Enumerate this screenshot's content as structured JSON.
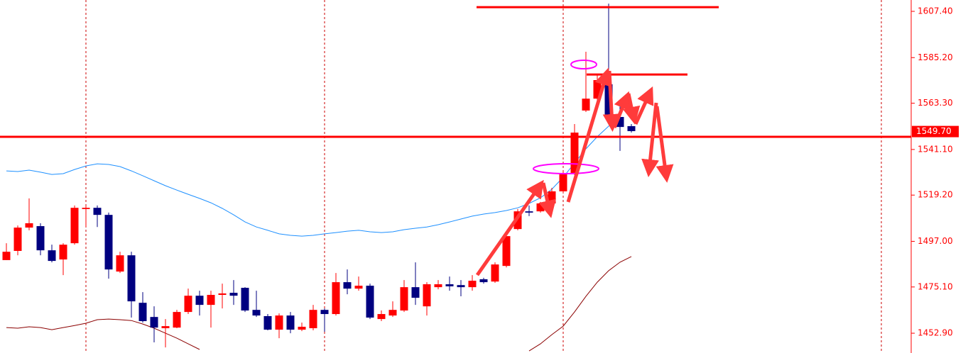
{
  "chart_data": {
    "type": "candlestick",
    "up_color": "#ff0000",
    "down_color": "#000080",
    "open": [
      1488.0,
      1492.4,
      1503.6,
      1504.3,
      1492.7,
      1488.3,
      1496.1,
      1512.5,
      1513.1,
      1509.7,
      1482.5,
      1490.3,
      1467.5,
      1460.7,
      1455.3,
      1455.6,
      1463.1,
      1470.9,
      1466.5,
      1471.3,
      1472.3,
      1474.7,
      1464.1,
      1461.1,
      1454.6,
      1461.4,
      1454.6,
      1455.3,
      1464.1,
      1462.1,
      1477.4,
      1474.3,
      1475.7,
      1459.7,
      1461.4,
      1463.8,
      1475.0,
      1465.8,
      1475.0,
      1476.4,
      1476.0,
      1475.0,
      1478.8,
      1477.7,
      1485.2,
      1502.9,
      1511.4,
      1511.4,
      1515.2,
      1521.0,
      1529.5,
      1559.8,
      1565.5,
      1572.4,
      1556.7,
      1552.3
    ],
    "high": [
      1496.1,
      1504.6,
      1517.6,
      1505.7,
      1495.4,
      1496.1,
      1514.2,
      1514.2,
      1514.2,
      1510.8,
      1492.0,
      1492.0,
      1472.6,
      1465.8,
      1459.7,
      1464.1,
      1474.3,
      1473.3,
      1473.3,
      1476.7,
      1478.4,
      1475.0,
      1473.3,
      1462.1,
      1462.4,
      1463.1,
      1458.0,
      1466.5,
      1464.8,
      1481.8,
      1483.5,
      1480.1,
      1476.7,
      1463.8,
      1468.2,
      1478.4,
      1486.9,
      1477.4,
      1478.4,
      1480.1,
      1478.4,
      1480.8,
      1479.5,
      1486.9,
      1500.6,
      1512.5,
      1514.2,
      1515.9,
      1522.7,
      1531.2,
      1553.3,
      1588.0,
      1577.1,
      1611.1,
      1561.8,
      1553.3
    ],
    "low": [
      1488.0,
      1490.3,
      1502.3,
      1490.3,
      1486.9,
      1480.8,
      1495.4,
      1503.9,
      1503.9,
      1479.1,
      1481.8,
      1460.4,
      1458.0,
      1448.5,
      1446.1,
      1455.3,
      1462.1,
      1461.4,
      1455.6,
      1464.8,
      1466.5,
      1463.1,
      1460.7,
      1454.3,
      1450.5,
      1452.9,
      1453.9,
      1454.3,
      1453.6,
      1461.4,
      1471.6,
      1473.3,
      1459.7,
      1458.7,
      1460.7,
      1463.1,
      1466.5,
      1461.4,
      1474.0,
      1473.3,
      1470.6,
      1473.3,
      1476.7,
      1477.1,
      1484.5,
      1502.3,
      1509.1,
      1510.8,
      1514.2,
      1520.3,
      1528.8,
      1559.1,
      1564.9,
      1555.0,
      1540.4,
      1549.2
    ],
    "close": [
      1492.0,
      1503.6,
      1505.7,
      1492.7,
      1487.6,
      1495.4,
      1513.1,
      1513.1,
      1509.7,
      1483.5,
      1490.3,
      1468.2,
      1458.7,
      1455.6,
      1456.3,
      1463.1,
      1470.9,
      1466.5,
      1471.3,
      1472.0,
      1470.9,
      1463.8,
      1461.4,
      1454.6,
      1461.4,
      1454.6,
      1456.0,
      1464.1,
      1462.1,
      1477.4,
      1474.3,
      1475.7,
      1460.4,
      1462.1,
      1464.1,
      1475.0,
      1469.9,
      1476.4,
      1476.4,
      1475.4,
      1475.0,
      1478.1,
      1477.4,
      1485.9,
      1499.5,
      1511.4,
      1510.8,
      1515.2,
      1521.0,
      1529.5,
      1549.2,
      1565.5,
      1574.4,
      1556.3,
      1551.9,
      1549.9
    ],
    "series": [
      {
        "color": "#1e90ff",
        "values": [
          1530.8,
          1530.5,
          1531.2,
          1530.2,
          1529.1,
          1529.5,
          1531.5,
          1533.2,
          1534.2,
          1533.9,
          1532.9,
          1530.8,
          1528.5,
          1526.1,
          1523.7,
          1521.6,
          1519.6,
          1517.6,
          1515.5,
          1512.8,
          1509.7,
          1506.3,
          1503.9,
          1502.3,
          1500.6,
          1499.9,
          1499.5,
          1499.9,
          1500.6,
          1501.2,
          1501.9,
          1502.3,
          1501.6,
          1501.2,
          1501.6,
          1502.6,
          1503.3,
          1503.9,
          1505.0,
          1506.3,
          1507.7,
          1509.1,
          1510.1,
          1510.8,
          1511.8,
          1513.1,
          1515.2,
          1517.9,
          1522.0,
          1527.8,
          1534.6,
          1541.4,
          1547.2,
          1552.3,
          1556.7,
          null
        ]
      },
      {
        "color": "#8b0000",
        "values": [
          1455.6,
          1455.3,
          1456.0,
          1455.6,
          1454.6,
          1455.6,
          1456.6,
          1457.7,
          1459.4,
          1459.7,
          1459.4,
          1459.0,
          1457.3,
          1455.3,
          1452.9,
          1450.5,
          1447.8,
          1445.1,
          null,
          null,
          null,
          null,
          null,
          null,
          null,
          null,
          null,
          null,
          null,
          null,
          null,
          null,
          null,
          null,
          null,
          null,
          null,
          null,
          null,
          null,
          null,
          null,
          null,
          null,
          null,
          null,
          1444.4,
          1447.8,
          1452.2,
          1456.3,
          1463.1,
          1470.6,
          1477.4,
          1482.9,
          1487.0,
          1489.7
        ]
      }
    ],
    "levels": [
      1609.4,
      1577.1,
      1547.2
    ],
    "level_color": "#ff0000",
    "current_price": {
      "value": 1549.7,
      "label": "1549.70"
    },
    "ylim": [
      1443.4,
      1612.85
    ],
    "yticks": [
      {
        "value": 1607.4,
        "label": "1607.40"
      },
      {
        "value": 1585.2,
        "label": "1585.20"
      },
      {
        "value": 1563.3,
        "label": "1563.30"
      },
      {
        "value": 1541.1,
        "label": "1541.10"
      },
      {
        "value": 1519.2,
        "label": "1519.20"
      },
      {
        "value": 1497.0,
        "label": "1497.00"
      },
      {
        "value": 1475.1,
        "label": "1475.10"
      },
      {
        "value": 1452.9,
        "label": "1452.90"
      }
    ]
  }
}
